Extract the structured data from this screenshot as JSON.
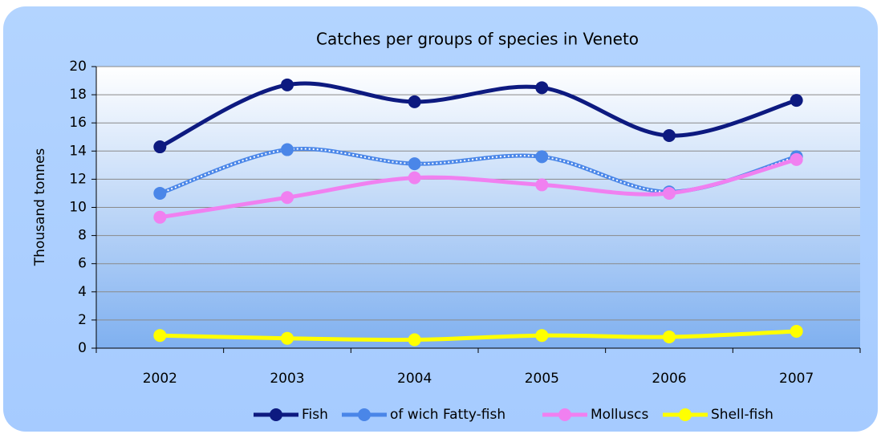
{
  "chart_data": {
    "type": "line",
    "title": "Catches per groups of species in Veneto",
    "y_label": "Thousand  tonnes",
    "categories": [
      "2002",
      "2003",
      "2004",
      "2005",
      "2006",
      "2007"
    ],
    "series": [
      {
        "name": "Fish",
        "color": "#0d1a80",
        "values": [
          14.3,
          18.7,
          17.5,
          18.5,
          15.1,
          17.6
        ]
      },
      {
        "name": "of wich Fatty-fish",
        "color": "#4a86e8",
        "values": [
          11.0,
          14.1,
          13.1,
          13.6,
          11.1,
          13.6
        ]
      },
      {
        "name": "Molluscs",
        "color": "#f080f0",
        "values": [
          9.3,
          10.7,
          12.1,
          11.6,
          11.0,
          13.4
        ]
      },
      {
        "name": "Shell-fish",
        "color": "#ffff00",
        "values": [
          0.9,
          0.7,
          0.6,
          0.9,
          0.8,
          1.2
        ]
      }
    ],
    "ylim": [
      0,
      20
    ],
    "yticks": [
      0,
      2,
      4,
      6,
      8,
      10,
      12,
      14,
      16,
      18,
      20
    ],
    "grid": true,
    "legend": "bottom"
  }
}
